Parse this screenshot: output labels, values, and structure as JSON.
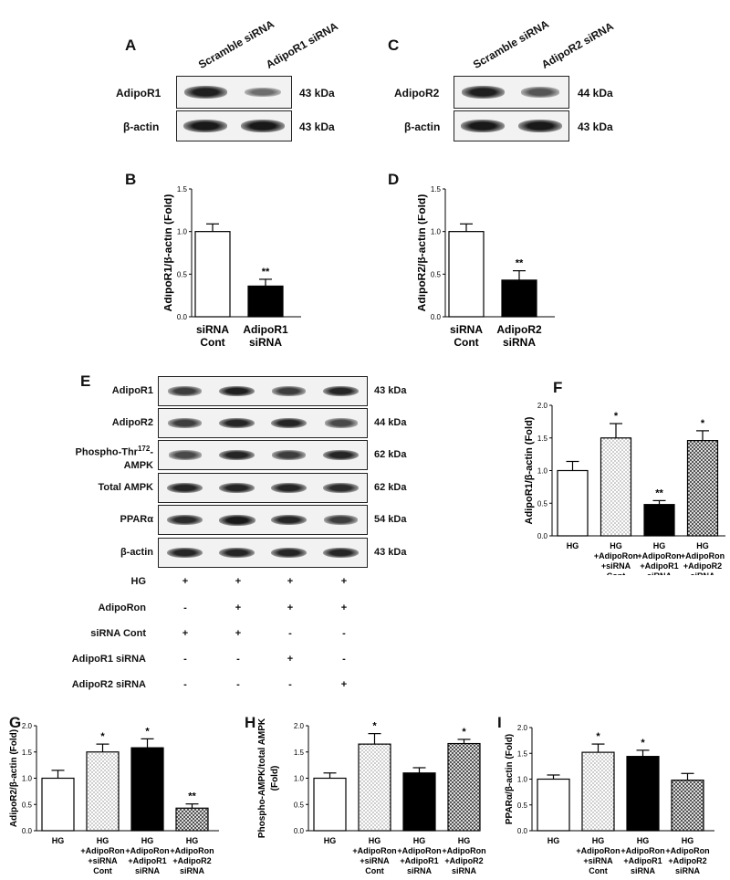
{
  "panelA": {
    "letter": "A",
    "columns": [
      "Scramble siRNA",
      "AdipoR1 siRNA"
    ],
    "rows": [
      {
        "label": "AdipoR1",
        "kda": "43 kDa",
        "bands": [
          0.95,
          0.3
        ]
      },
      {
        "label": "β-actin",
        "kda": "43 kDa",
        "bands": [
          1.0,
          1.0
        ]
      }
    ]
  },
  "panelC": {
    "letter": "C",
    "columns": [
      "Scramble siRNA",
      "AdipoR2 siRNA"
    ],
    "rows": [
      {
        "label": "AdipoR2",
        "kda": "44 kDa",
        "bands": [
          0.95,
          0.5
        ]
      },
      {
        "label": "β-actin",
        "kda": "43 kDa",
        "bands": [
          1.0,
          1.0
        ]
      }
    ]
  },
  "panelE": {
    "letter": "E",
    "rows": [
      {
        "label": "AdipoR1",
        "kda": "43 kDa",
        "bands": [
          0.7,
          0.95,
          0.7,
          0.9
        ]
      },
      {
        "label": "AdipoR2",
        "kda": "44 kDa",
        "bands": [
          0.7,
          0.9,
          0.9,
          0.6
        ]
      },
      {
        "label": "Phospho-Thr",
        "sup": "172",
        "label2": "AMPK",
        "kda": "62 kDa",
        "bands": [
          0.6,
          0.9,
          0.7,
          0.9
        ]
      },
      {
        "label": "Total AMPK",
        "kda": "62 kDa",
        "bands": [
          0.9,
          0.9,
          0.9,
          0.85
        ]
      },
      {
        "label": "PPARα",
        "kda": "54 kDa",
        "bands": [
          0.85,
          1.0,
          0.9,
          0.7
        ]
      },
      {
        "label": "β-actin",
        "kda": "43 kDa",
        "bands": [
          0.9,
          0.9,
          0.9,
          0.9
        ]
      }
    ],
    "conditions": [
      {
        "label": "HG",
        "values": [
          "+",
          "+",
          "+",
          "+"
        ]
      },
      {
        "label": "AdipoRon",
        "values": [
          "-",
          "+",
          "+",
          "+"
        ]
      },
      {
        "label": "siRNA Cont",
        "values": [
          "+",
          "+",
          "-",
          "-"
        ]
      },
      {
        "label": "AdipoR1 siRNA",
        "values": [
          "-",
          "-",
          "+",
          "-"
        ]
      },
      {
        "label": "AdipoR2 siRNA",
        "values": [
          "-",
          "-",
          "-",
          "+"
        ]
      }
    ]
  },
  "chart_data": [
    {
      "id": "B",
      "letter": "B",
      "type": "bar",
      "ylabel": "AdipoR1/β-actin (Fold)",
      "ylim": [
        0,
        1.5
      ],
      "yticks": [
        "0.0",
        "0.5",
        "1.0",
        "1.5"
      ],
      "categories": [
        [
          "siRNA",
          "Cont"
        ],
        [
          "AdipoR1",
          "siRNA"
        ]
      ],
      "values": [
        1.0,
        0.36
      ],
      "errors": [
        0.09,
        0.08
      ],
      "styles": [
        "white",
        "black"
      ],
      "significance": [
        "",
        "**"
      ]
    },
    {
      "id": "D",
      "letter": "D",
      "type": "bar",
      "ylabel": "AdipoR2/β-actin (Fold)",
      "ylim": [
        0,
        1.5
      ],
      "yticks": [
        "0.0",
        "0.5",
        "1.0",
        "1.5"
      ],
      "categories": [
        [
          "siRNA",
          "Cont"
        ],
        [
          "AdipoR2",
          "siRNA"
        ]
      ],
      "values": [
        1.0,
        0.43
      ],
      "errors": [
        0.09,
        0.11
      ],
      "styles": [
        "white",
        "black"
      ],
      "significance": [
        "",
        "**"
      ]
    },
    {
      "id": "F",
      "letter": "F",
      "type": "bar",
      "ylabel": "AdipoR1/β-actin (Fold)",
      "ylim": [
        0,
        2.0
      ],
      "yticks": [
        "0.0",
        "0.5",
        "1.0",
        "1.5",
        "2.0"
      ],
      "categories": [
        [
          "HG"
        ],
        [
          "HG",
          "+AdipoRon",
          "+siRNA",
          "Cont"
        ],
        [
          "HG",
          "+AdipoRon",
          "+AdipoR1",
          "siRNA"
        ],
        [
          "HG",
          "+AdipoRon",
          "+AdipoR2",
          "siRNA"
        ]
      ],
      "values": [
        1.0,
        1.5,
        0.48,
        1.46
      ],
      "errors": [
        0.14,
        0.22,
        0.06,
        0.15
      ],
      "styles": [
        "white",
        "dots",
        "black",
        "hatch"
      ],
      "significance": [
        "",
        "*",
        "**",
        "*"
      ]
    },
    {
      "id": "G",
      "letter": "G",
      "type": "bar",
      "ylabel": "AdipoR2/β-actin (Fold)",
      "ylim": [
        0,
        2.0
      ],
      "yticks": [
        "0.0",
        "0.5",
        "1.0",
        "1.5",
        "2.0"
      ],
      "categories": [
        [
          "HG"
        ],
        [
          "HG",
          "+AdipoRon",
          "+siRNA",
          "Cont"
        ],
        [
          "HG",
          "+AdipoRon",
          "+AdipoR1",
          "siRNA"
        ],
        [
          "HG",
          "+AdipoRon",
          "+AdipoR2",
          "siRNA"
        ]
      ],
      "values": [
        1.0,
        1.5,
        1.58,
        0.43
      ],
      "errors": [
        0.15,
        0.15,
        0.17,
        0.08
      ],
      "styles": [
        "white",
        "dots",
        "black",
        "hatch"
      ],
      "significance": [
        "",
        "*",
        "*",
        "**"
      ]
    },
    {
      "id": "H",
      "letter": "H",
      "type": "bar",
      "ylabel": "Phospho-AMPK/total AMPK",
      "ylabel2": "(Fold)",
      "ylim": [
        0,
        2.0
      ],
      "yticks": [
        "0.0",
        "0.5",
        "1.0",
        "1.5",
        "2.0"
      ],
      "categories": [
        [
          "HG"
        ],
        [
          "HG",
          "+AdipoRon",
          "+siRNA",
          "Cont"
        ],
        [
          "HG",
          "+AdipoRon",
          "+AdipoR1",
          "siRNA"
        ],
        [
          "HG",
          "+AdipoRon",
          "+AdipoR2",
          "siRNA"
        ]
      ],
      "values": [
        1.0,
        1.65,
        1.1,
        1.66
      ],
      "errors": [
        0.1,
        0.2,
        0.1,
        0.08
      ],
      "styles": [
        "white",
        "dots",
        "black",
        "hatch"
      ],
      "significance": [
        "",
        "*",
        "",
        "*"
      ]
    },
    {
      "id": "I",
      "letter": "I",
      "type": "bar",
      "ylabel": "PPARα/β-actin (Fold)",
      "ylim": [
        0,
        2.0
      ],
      "yticks": [
        "0.0",
        "0.5",
        "1.0",
        "1.5",
        "2.0"
      ],
      "categories": [
        [
          "HG"
        ],
        [
          "HG",
          "+AdipoRon",
          "+siRNA",
          "Cont"
        ],
        [
          "HG",
          "+AdipoRon",
          "+AdipoR1",
          "siRNA"
        ],
        [
          "HG",
          "+AdipoRon",
          "+AdipoR2",
          "siRNA"
        ]
      ],
      "values": [
        1.0,
        1.52,
        1.44,
        0.98
      ],
      "errors": [
        0.08,
        0.16,
        0.12,
        0.13
      ],
      "styles": [
        "white",
        "dots",
        "black",
        "hatch"
      ],
      "significance": [
        "",
        "*",
        "*",
        ""
      ]
    }
  ]
}
